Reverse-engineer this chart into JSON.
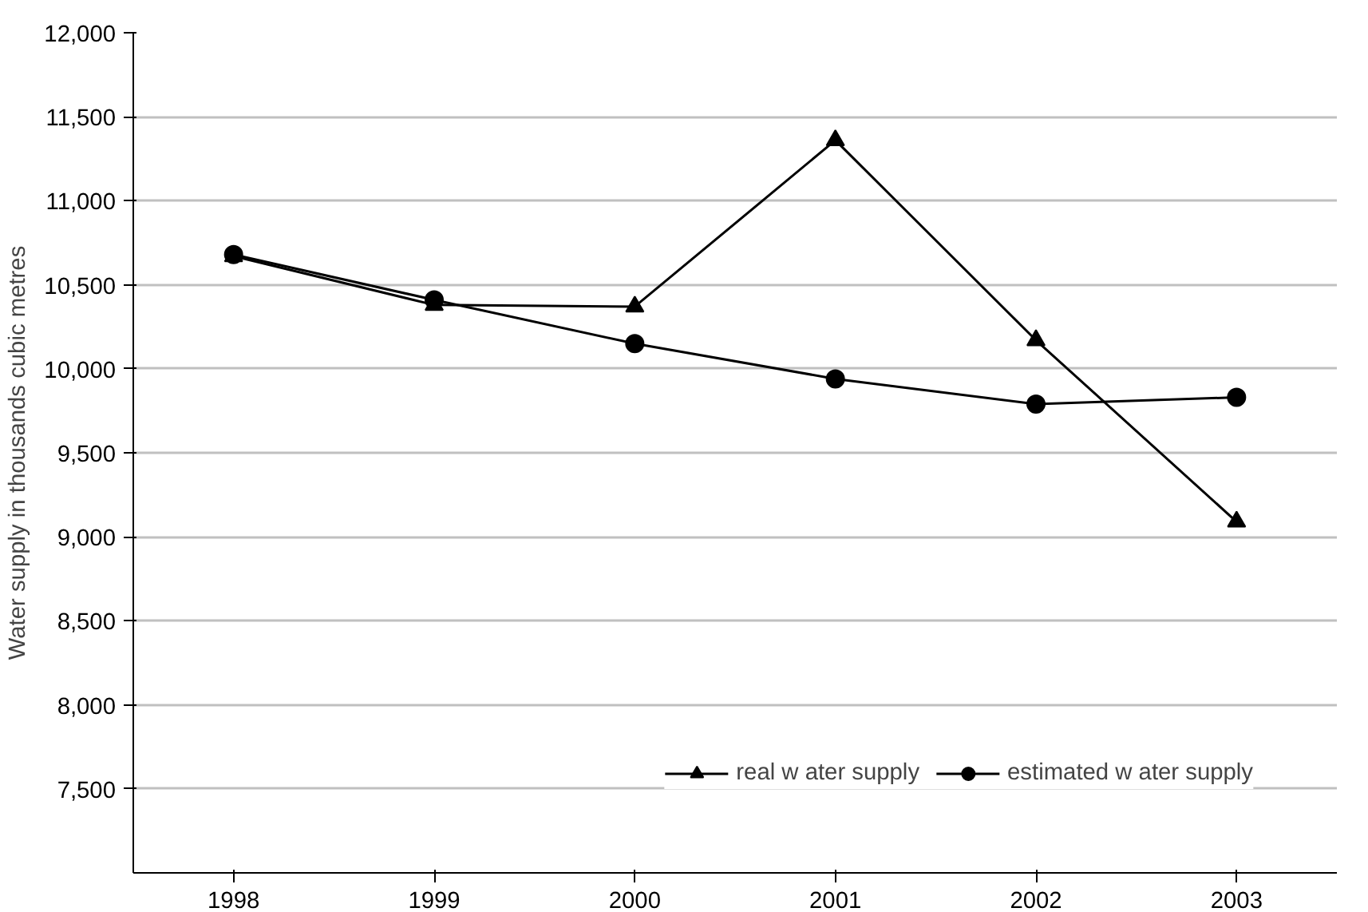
{
  "chart_data": {
    "type": "line",
    "ylabel": "Water supply in thousands cubic metres",
    "categories": [
      "1998",
      "1999",
      "2000",
      "2001",
      "2002",
      "2003"
    ],
    "series": [
      {
        "name": "real w ater supply",
        "color": "#000000",
        "marker": "triangle",
        "values": [
          10670,
          10380,
          10370,
          11360,
          10170,
          9090
        ]
      },
      {
        "name": "estimated w ater supply",
        "color": "#000000",
        "marker": "circle",
        "values": [
          10680,
          10410,
          10150,
          9940,
          9790,
          9830
        ]
      }
    ],
    "ylim": [
      7000,
      12000
    ],
    "yticks": [
      {
        "value": 7500,
        "label": "7,500"
      },
      {
        "value": 8000,
        "label": "8,000"
      },
      {
        "value": 8500,
        "label": "8,500"
      },
      {
        "value": 9000,
        "label": "9,000"
      },
      {
        "value": 9500,
        "label": "9,500"
      },
      {
        "value": 10000,
        "label": "10,000"
      },
      {
        "value": 10500,
        "label": "10,500"
      },
      {
        "value": 11000,
        "label": "11,000"
      },
      {
        "value": 11500,
        "label": "11,500"
      },
      {
        "value": 12000,
        "label": "12,000"
      }
    ],
    "grid": "y",
    "legend": "bottom right",
    "line_style": "solid"
  }
}
